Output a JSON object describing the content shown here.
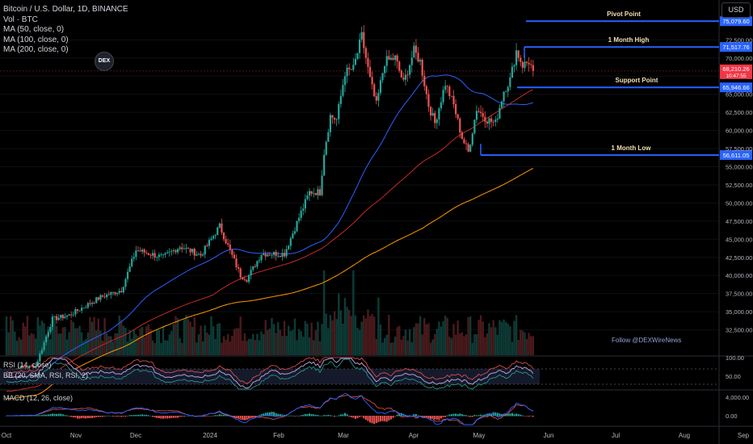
{
  "legend": {
    "title": "Bitcoin / U.S. Dollar, 1D, BINANCE",
    "volume": "Vol · BTC",
    "ma50": "MA (50, close, 0)",
    "ma100": "MA (100, close, 0)",
    "ma200": "MA (200, close, 0)"
  },
  "currency_button": "USD",
  "logo_text": "DEX",
  "follow_text": "Follow @DEXWireNews",
  "rsi_label": "RSI (14, close)",
  "bb_label": "BB (20, SMA, RSI, RSI, 2)",
  "macd_label": "MACD (12, 26, close)",
  "colors": {
    "up": "#26a69a",
    "down": "#ef5350",
    "ma50": "#2962ff",
    "ma100": "#c62828",
    "ma200": "#ff9800",
    "level": "#2962ff",
    "label_text": "#f5deb3"
  },
  "chart_data": {
    "type": "candlestick",
    "x_ticks": [
      "Oct",
      "Nov",
      "Dec",
      "2024",
      "Feb",
      "Mar",
      "Apr",
      "May",
      "Jun",
      "Jul",
      "Aug",
      "Sep"
    ],
    "y_ticks": [
      "72,500.00",
      "70,000.00",
      "65,000.00",
      "62,500.00",
      "60,000.00",
      "57,500.00",
      "55,000.00",
      "52,500.00",
      "50,000.00",
      "47,500.00",
      "45,000.00",
      "42,500.00",
      "40,000.00",
      "37,500.00",
      "35,000.00",
      "32,500.00"
    ],
    "ylim": [
      29000,
      78000
    ],
    "levels": [
      {
        "label": "Pivot Point",
        "value": 75079.6,
        "price_label": "75,079.60"
      },
      {
        "label": "1 Month High",
        "value": 71517.76,
        "price_label": "71,517.76"
      },
      {
        "label": "Support Point",
        "value": 65946.66,
        "price_label": "65,946.66"
      },
      {
        "label": "1 Month Low",
        "value": 56611.05,
        "price_label": "56,611.05"
      }
    ],
    "current_price": {
      "value": 68210.26,
      "label": "68,210.26",
      "countdown": "10:47:55"
    },
    "rsi": {
      "ticks": [
        "100.00",
        "50.00"
      ]
    },
    "macd": {
      "ticks": [
        "4,000.00",
        "0.00"
      ]
    },
    "anchors": [
      {
        "day": 0,
        "price": 27000
      },
      {
        "day": 14,
        "price": 27500
      },
      {
        "day": 22,
        "price": 34000
      },
      {
        "day": 30,
        "price": 34500
      },
      {
        "day": 45,
        "price": 37000
      },
      {
        "day": 55,
        "price": 38000
      },
      {
        "day": 62,
        "price": 43500
      },
      {
        "day": 75,
        "price": 42500
      },
      {
        "day": 83,
        "price": 44000
      },
      {
        "day": 93,
        "price": 42800
      },
      {
        "day": 102,
        "price": 46800
      },
      {
        "day": 112,
        "price": 40000
      },
      {
        "day": 115,
        "price": 39500
      },
      {
        "day": 122,
        "price": 43000
      },
      {
        "day": 133,
        "price": 43000
      },
      {
        "day": 140,
        "price": 48000
      },
      {
        "day": 145,
        "price": 51500
      },
      {
        "day": 150,
        "price": 51500
      },
      {
        "day": 152,
        "price": 57000
      },
      {
        "day": 155,
        "price": 62000
      },
      {
        "day": 158,
        "price": 61500
      },
      {
        "day": 162,
        "price": 68000
      },
      {
        "day": 166,
        "price": 68500
      },
      {
        "day": 170,
        "price": 73000
      },
      {
        "day": 174,
        "price": 67000
      },
      {
        "day": 177,
        "price": 63500
      },
      {
        "day": 181,
        "price": 69500
      },
      {
        "day": 186,
        "price": 70000
      },
      {
        "day": 190,
        "price": 66500
      },
      {
        "day": 195,
        "price": 71000
      },
      {
        "day": 198,
        "price": 69500
      },
      {
        "day": 202,
        "price": 63500
      },
      {
        "day": 205,
        "price": 61000
      },
      {
        "day": 210,
        "price": 66500
      },
      {
        "day": 214,
        "price": 63500
      },
      {
        "day": 218,
        "price": 59000
      },
      {
        "day": 221,
        "price": 57000
      },
      {
        "day": 225,
        "price": 63000
      },
      {
        "day": 230,
        "price": 61500
      },
      {
        "day": 234,
        "price": 61000
      },
      {
        "day": 238,
        "price": 65500
      },
      {
        "day": 241,
        "price": 67000
      },
      {
        "day": 244,
        "price": 71000
      },
      {
        "day": 247,
        "price": 69000
      },
      {
        "day": 250,
        "price": 69500
      },
      {
        "day": 252,
        "price": 68200
      }
    ]
  }
}
